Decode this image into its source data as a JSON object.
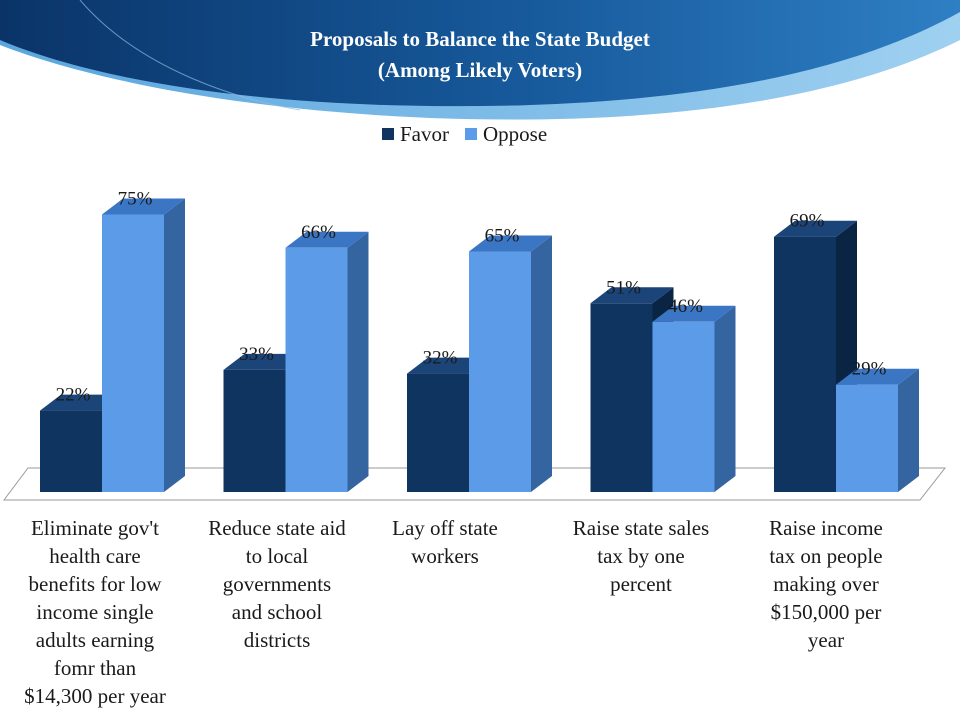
{
  "header": {
    "title_line1": "Proposals to Balance the State Budget",
    "title_line2": "(Among Likely Voters)"
  },
  "colors": {
    "favor": "#0f3460",
    "oppose": "#5b9be8",
    "header_dark": "#0c3a73",
    "header_mid": "#1f6aad",
    "header_light": "#4b9ad6"
  },
  "chart_data": {
    "type": "bar",
    "categories": [
      "Eliminate gov't health care benefits for low income single adults earning fomr than $14,300 per year",
      "Reduce state aid to local governments and school districts",
      "Lay off state workers",
      "Raise state sales tax by one percent",
      "Raise income tax on people making over $150,000 per year"
    ],
    "category_lines": [
      [
        "Eliminate gov't",
        "health care",
        "benefits for low",
        "income single",
        "adults earning",
        "fomr than",
        "$14,300 per year"
      ],
      [
        "Reduce state aid",
        "to local",
        "governments",
        "and school",
        "districts"
      ],
      [
        "Lay off state",
        "workers"
      ],
      [
        "Raise state sales",
        "tax by one",
        "percent"
      ],
      [
        "Raise income",
        "tax on people",
        "making over",
        "$150,000 per",
        "year"
      ]
    ],
    "series": [
      {
        "name": "Favor",
        "values": [
          22,
          33,
          32,
          51,
          69
        ],
        "labels": [
          "22%",
          "33%",
          "32%",
          "51%",
          "69%"
        ]
      },
      {
        "name": "Oppose",
        "values": [
          75,
          66,
          65,
          46,
          29
        ],
        "labels": [
          "75%",
          "66%",
          "65%",
          "46%",
          "29%"
        ]
      }
    ],
    "ylim": [
      0,
      80
    ],
    "grid": false,
    "legend_position": "top-center",
    "style": "3d-clustered-column"
  }
}
